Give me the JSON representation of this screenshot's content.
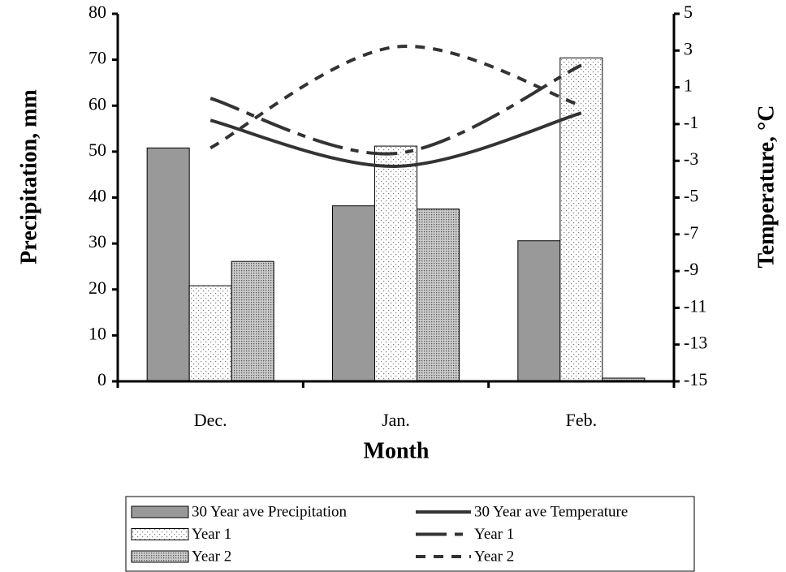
{
  "chart_data": {
    "type": "bar",
    "x_label": "Month",
    "y_label": "Precipitation, mm",
    "y2_label": "Temperature, °C",
    "categories": [
      "Dec.",
      "Jan.",
      "Feb."
    ],
    "ylim": [
      0,
      80
    ],
    "yticks": [
      0,
      10,
      20,
      30,
      40,
      50,
      60,
      70,
      80
    ],
    "y2lim": [
      -15,
      5
    ],
    "y2ticks": [
      -15,
      -13,
      -11,
      -9,
      -7,
      -5,
      -3,
      -1,
      1,
      3,
      5
    ],
    "grid": false,
    "legend": "bottom",
    "series": [
      {
        "name": "30 Year ave Precipitation",
        "type": "bar",
        "color": "#999999",
        "fill": "solid",
        "values": [
          50.8,
          38.2,
          30.6
        ]
      },
      {
        "name": "Year 1",
        "type": "bar",
        "color": "#ffffff",
        "fill": "sparse-dots",
        "values": [
          20.8,
          51.2,
          70.4
        ]
      },
      {
        "name": "Year 2",
        "type": "bar",
        "color": "#ffffff",
        "fill": "dense-dots",
        "values": [
          26.1,
          37.5,
          0.7
        ]
      },
      {
        "name": "30 Year ave Temperature",
        "type": "line",
        "axis": "y2",
        "color": "#333333",
        "dash": "solid",
        "values": [
          -0.8,
          -3.3,
          -0.4
        ]
      },
      {
        "name": "Year 1",
        "type": "line",
        "axis": "y2",
        "color": "#333333",
        "dash": "dash-dot",
        "values": [
          0.4,
          -2.6,
          2.2
        ]
      },
      {
        "name": "Year 2",
        "type": "line",
        "axis": "y2",
        "color": "#333333",
        "dash": "dash",
        "values": [
          -2.3,
          3.2,
          0.0
        ]
      }
    ]
  }
}
